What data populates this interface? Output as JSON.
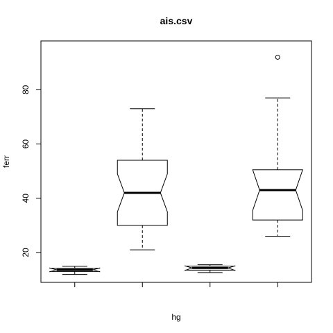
{
  "chart_data": {
    "type": "boxplot",
    "title": "ais.csv",
    "xlabel": "hg",
    "ylabel": "ferr",
    "notched": true,
    "ylim": [
      9.0,
      98.0
    ],
    "yticks": [
      20,
      40,
      60,
      80
    ],
    "categories": [
      "",
      "",
      "",
      ""
    ],
    "boxes": [
      {
        "lower_whisker": 11.9,
        "q1": 13.0,
        "median": 13.6,
        "q3": 14.2,
        "upper_whisker": 14.9,
        "notch_low": 12.9,
        "notch_high": 14.3,
        "outliers": []
      },
      {
        "lower_whisker": 21.0,
        "q1": 30.0,
        "median": 42.0,
        "q3": 54.0,
        "upper_whisker": 73.0,
        "notch_low": 35.0,
        "notch_high": 49.0,
        "outliers": []
      },
      {
        "lower_whisker": 12.6,
        "q1": 13.5,
        "median": 14.3,
        "q3": 15.0,
        "upper_whisker": 15.5,
        "notch_low": 13.4,
        "notch_high": 15.1,
        "outliers": []
      },
      {
        "lower_whisker": 26.0,
        "q1": 32.0,
        "median": 43.0,
        "q3": 50.5,
        "upper_whisker": 77.0,
        "notch_low": 35.5,
        "notch_high": 50.5,
        "outliers": [
          92.0
        ]
      }
    ]
  }
}
